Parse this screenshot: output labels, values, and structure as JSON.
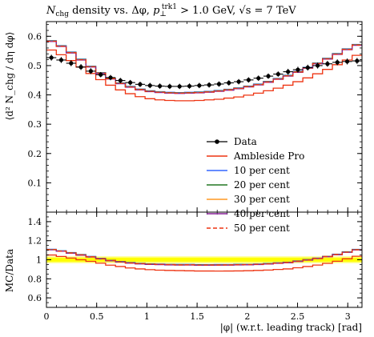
{
  "chart_data": {
    "type": "line",
    "title": "N_chg density vs. Δφ, p_⊥^trk1 > 1.0 GeV, √s = 7 TeV",
    "title_parts": {
      "n": "N",
      "n_sub": "chg",
      "mid": " density vs. Δφ, ",
      "p": "p",
      "p_sub": "⊥",
      "p_sup": "trk1",
      "cut": " > 1.0 GeV, ",
      "sqrt_s": "√s",
      "energy": " = 7 TeV"
    },
    "xlabel": "|φ| (w.r.t. leading track) [rad]",
    "ylabel": "⟨d² N_chg / dη dφ⟩",
    "ylabel_ratio": "MC/Data",
    "xlim": [
      0,
      3.1416
    ],
    "ylim": [
      0,
      0.65
    ],
    "ratio_ylim": [
      0.5,
      1.5
    ],
    "x_ticks": [
      "0",
      "0.5",
      "1",
      "1.5",
      "2",
      "2.5",
      "3"
    ],
    "x_tick_values": [
      0,
      0.5,
      1,
      1.5,
      2,
      2.5,
      3
    ],
    "y_ticks": [
      "0.1",
      "0.2",
      "0.3",
      "0.4",
      "0.5",
      "0.6"
    ],
    "y_tick_values": [
      0.1,
      0.2,
      0.3,
      0.4,
      0.5,
      0.6
    ],
    "ratio_y_ticks": [
      "0.6",
      "0.8",
      "1",
      "1.2",
      "1.4"
    ],
    "ratio_y_tick_values": [
      0.6,
      0.8,
      1.0,
      1.2,
      1.4
    ],
    "bins": 32,
    "legend_position": "center-right",
    "series": [
      {
        "name": "Data",
        "color": "#000000",
        "style": "points",
        "values": [
          0.527,
          0.519,
          0.508,
          0.495,
          0.481,
          0.469,
          0.459,
          0.449,
          0.442,
          0.436,
          0.432,
          0.43,
          0.429,
          0.429,
          0.43,
          0.432,
          0.434,
          0.437,
          0.441,
          0.445,
          0.451,
          0.457,
          0.464,
          0.471,
          0.479,
          0.486,
          0.493,
          0.5,
          0.506,
          0.511,
          0.514,
          0.516
        ],
        "ratio": [
          1,
          1,
          1,
          1,
          1,
          1,
          1,
          1,
          1,
          1,
          1,
          1,
          1,
          1,
          1,
          1,
          1,
          1,
          1,
          1,
          1,
          1,
          1,
          1,
          1,
          1,
          1,
          1,
          1,
          1,
          1,
          1
        ]
      },
      {
        "name": "Ambleside Pro",
        "color": "#ee3311",
        "style": "step",
        "values": [
          0.553,
          0.537,
          0.517,
          0.495,
          0.473,
          0.452,
          0.433,
          0.417,
          0.404,
          0.394,
          0.387,
          0.383,
          0.381,
          0.38,
          0.38,
          0.381,
          0.383,
          0.385,
          0.389,
          0.393,
          0.399,
          0.406,
          0.414,
          0.423,
          0.433,
          0.445,
          0.458,
          0.472,
          0.487,
          0.503,
          0.519,
          0.535
        ],
        "ratio": [
          1.05,
          1.035,
          1.018,
          1.0,
          0.983,
          0.964,
          0.943,
          0.929,
          0.914,
          0.904,
          0.896,
          0.891,
          0.888,
          0.886,
          0.884,
          0.882,
          0.882,
          0.881,
          0.882,
          0.883,
          0.885,
          0.888,
          0.892,
          0.898,
          0.904,
          0.916,
          0.929,
          0.944,
          0.962,
          0.984,
          1.01,
          1.037
        ]
      },
      {
        "name": "10 per cent",
        "color": "#3366ff",
        "style": "step",
        "values": [
          0.585,
          0.568,
          0.546,
          0.522,
          0.498,
          0.476,
          0.457,
          0.441,
          0.429,
          0.42,
          0.414,
          0.411,
          0.409,
          0.408,
          0.409,
          0.41,
          0.412,
          0.415,
          0.419,
          0.424,
          0.43,
          0.437,
          0.446,
          0.456,
          0.467,
          0.48,
          0.494,
          0.509,
          0.525,
          0.541,
          0.557,
          0.572
        ],
        "ratio": [
          1.11,
          1.094,
          1.075,
          1.055,
          1.035,
          1.015,
          0.996,
          0.982,
          0.971,
          0.963,
          0.958,
          0.956,
          0.953,
          0.951,
          0.951,
          0.949,
          0.949,
          0.95,
          0.95,
          0.953,
          0.953,
          0.956,
          0.961,
          0.968,
          0.975,
          0.988,
          1.002,
          1.018,
          1.037,
          1.059,
          1.084,
          1.109
        ]
      },
      {
        "name": "20 per cent",
        "color": "#227722",
        "style": "step",
        "values": [
          0.584,
          0.567,
          0.545,
          0.521,
          0.497,
          0.475,
          0.456,
          0.44,
          0.428,
          0.419,
          0.413,
          0.41,
          0.408,
          0.407,
          0.408,
          0.409,
          0.411,
          0.414,
          0.418,
          0.423,
          0.429,
          0.436,
          0.445,
          0.455,
          0.466,
          0.479,
          0.493,
          0.508,
          0.524,
          0.54,
          0.556,
          0.571
        ],
        "ratio": [
          1.108,
          1.092,
          1.073,
          1.053,
          1.033,
          1.013,
          0.994,
          0.98,
          0.968,
          0.961,
          0.956,
          0.953,
          0.951,
          0.949,
          0.949,
          0.947,
          0.947,
          0.947,
          0.948,
          0.951,
          0.951,
          0.954,
          0.959,
          0.966,
          0.973,
          0.986,
          1.0,
          1.016,
          1.036,
          1.057,
          1.082,
          1.107
        ]
      },
      {
        "name": "30 per cent",
        "color": "#ff9922",
        "style": "step",
        "values": [
          0.583,
          0.566,
          0.544,
          0.52,
          0.496,
          0.474,
          0.455,
          0.439,
          0.427,
          0.418,
          0.412,
          0.409,
          0.407,
          0.406,
          0.407,
          0.408,
          0.41,
          0.413,
          0.417,
          0.422,
          0.428,
          0.435,
          0.444,
          0.454,
          0.465,
          0.478,
          0.492,
          0.507,
          0.523,
          0.539,
          0.555,
          0.57
        ],
        "ratio": [
          1.106,
          1.091,
          1.071,
          1.051,
          1.031,
          1.011,
          0.992,
          0.978,
          0.966,
          0.959,
          0.954,
          0.951,
          0.949,
          0.946,
          0.947,
          0.944,
          0.945,
          0.945,
          0.946,
          0.948,
          0.949,
          0.952,
          0.957,
          0.964,
          0.971,
          0.984,
          0.998,
          1.014,
          1.034,
          1.055,
          1.08,
          1.105
        ]
      },
      {
        "name": "40 per cent",
        "color": "#882299",
        "style": "step",
        "values": [
          0.582,
          0.565,
          0.543,
          0.519,
          0.495,
          0.473,
          0.454,
          0.438,
          0.426,
          0.417,
          0.411,
          0.408,
          0.406,
          0.405,
          0.406,
          0.407,
          0.409,
          0.412,
          0.416,
          0.421,
          0.427,
          0.434,
          0.443,
          0.453,
          0.464,
          0.477,
          0.491,
          0.506,
          0.522,
          0.538,
          0.554,
          0.569
        ],
        "ratio": [
          1.104,
          1.089,
          1.069,
          1.048,
          1.029,
          1.009,
          0.989,
          0.976,
          0.964,
          0.956,
          0.951,
          0.949,
          0.946,
          0.944,
          0.944,
          0.942,
          0.942,
          0.943,
          0.943,
          0.946,
          0.947,
          0.95,
          0.955,
          0.962,
          0.969,
          0.981,
          0.996,
          1.012,
          1.032,
          1.053,
          1.078,
          1.103
        ]
      },
      {
        "name": "50 per cent",
        "color": "#ee3311",
        "style": "step-dashed",
        "values": [
          0.583,
          0.566,
          0.544,
          0.52,
          0.496,
          0.474,
          0.455,
          0.439,
          0.427,
          0.418,
          0.412,
          0.409,
          0.407,
          0.406,
          0.407,
          0.408,
          0.41,
          0.413,
          0.417,
          0.422,
          0.428,
          0.435,
          0.444,
          0.454,
          0.465,
          0.478,
          0.492,
          0.507,
          0.523,
          0.539,
          0.555,
          0.57
        ],
        "ratio": [
          1.106,
          1.091,
          1.071,
          1.051,
          1.031,
          1.011,
          0.992,
          0.978,
          0.966,
          0.959,
          0.954,
          0.951,
          0.949,
          0.946,
          0.947,
          0.944,
          0.945,
          0.945,
          0.946,
          0.948,
          0.949,
          0.952,
          0.957,
          0.964,
          0.971,
          0.984,
          0.998,
          1.014,
          1.034,
          1.055,
          1.08,
          1.105
        ]
      }
    ],
    "data_errors": [
      0.01,
      0.01,
      0.01,
      0.01,
      0.01,
      0.009,
      0.009,
      0.009,
      0.009,
      0.009,
      0.009,
      0.009,
      0.009,
      0.009,
      0.009,
      0.009,
      0.009,
      0.009,
      0.009,
      0.009,
      0.009,
      0.009,
      0.009,
      0.009,
      0.01,
      0.01,
      0.01,
      0.01,
      0.01,
      0.01,
      0.01,
      0.01
    ],
    "ratio_band": {
      "color": "#ffff00",
      "inner": 0.02,
      "outer": 0.035
    }
  }
}
